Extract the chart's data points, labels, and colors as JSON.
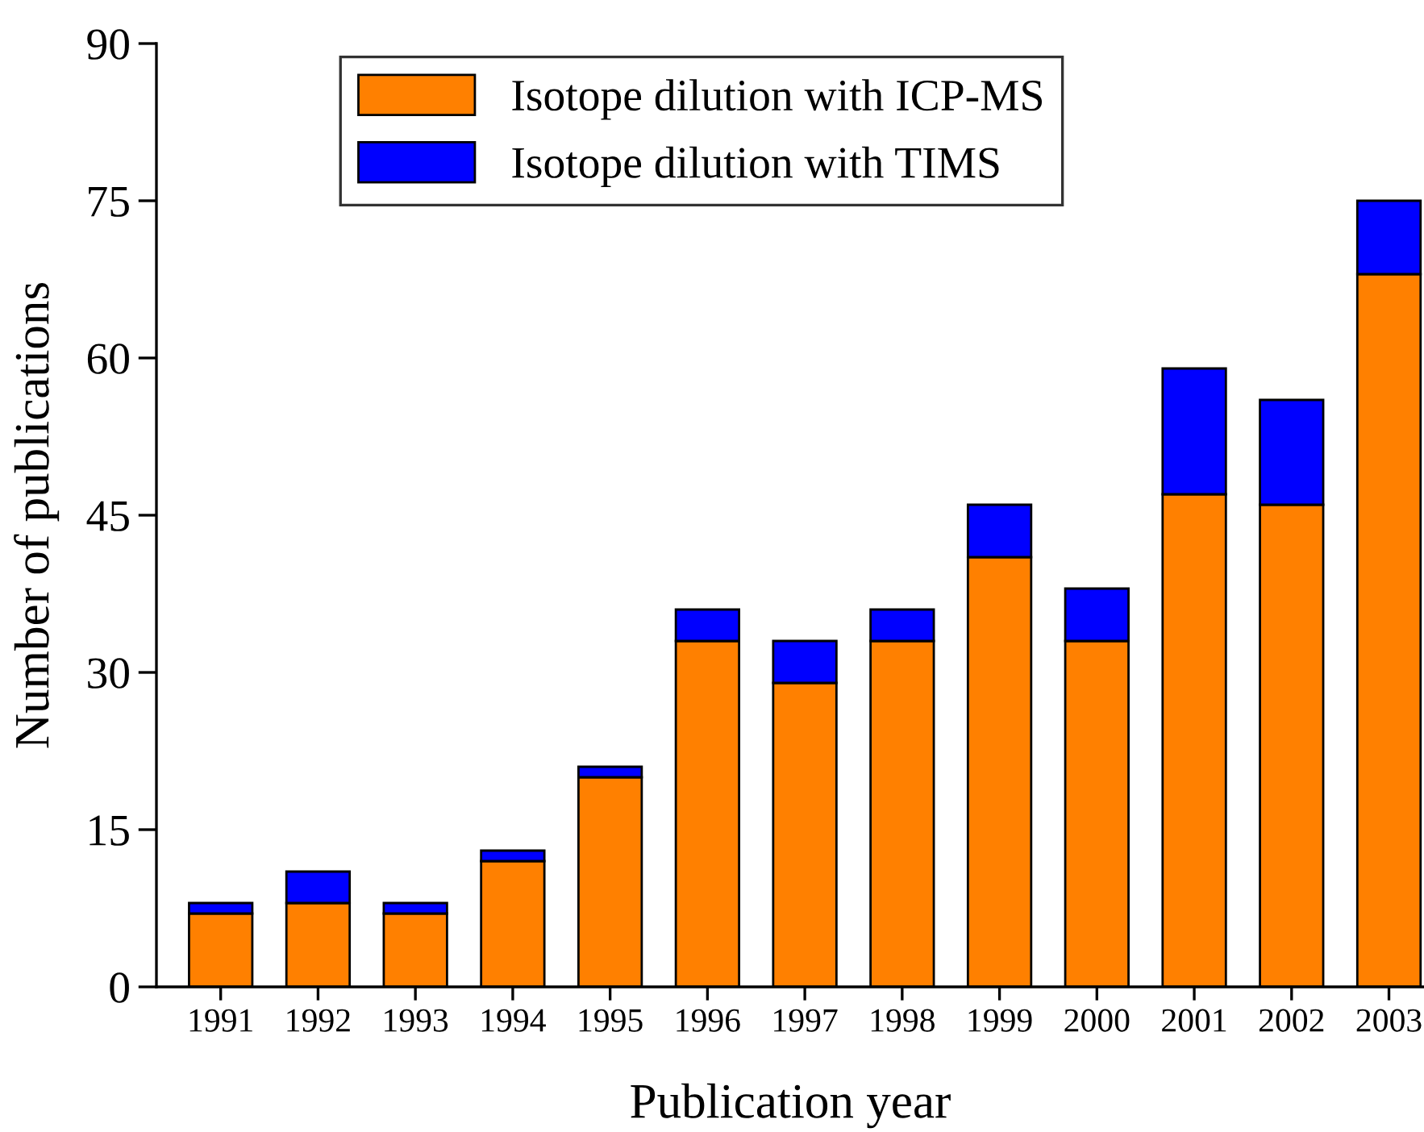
{
  "chart_data": {
    "type": "bar",
    "stacked": true,
    "xlabel": "Publication year",
    "ylabel": "Number of publications",
    "categories": [
      "1991",
      "1992",
      "1993",
      "1994",
      "1995",
      "1996",
      "1997",
      "1998",
      "1999",
      "2000",
      "2001",
      "2002",
      "2003"
    ],
    "series": [
      {
        "name": "Isotope dilution with ICP-MS",
        "color": "#ff8000",
        "values": [
          7,
          8,
          7,
          12,
          20,
          33,
          29,
          33,
          41,
          33,
          47,
          46,
          68
        ]
      },
      {
        "name": "Isotope dilution with TIMS",
        "color": "#0000ff",
        "values": [
          1,
          3,
          1,
          1,
          1,
          3,
          4,
          3,
          5,
          5,
          12,
          10,
          7
        ]
      }
    ],
    "ylim": [
      0,
      90
    ],
    "yticks": [
      0,
      15,
      30,
      45,
      60,
      75,
      90
    ],
    "grid": false,
    "legend": "top"
  }
}
